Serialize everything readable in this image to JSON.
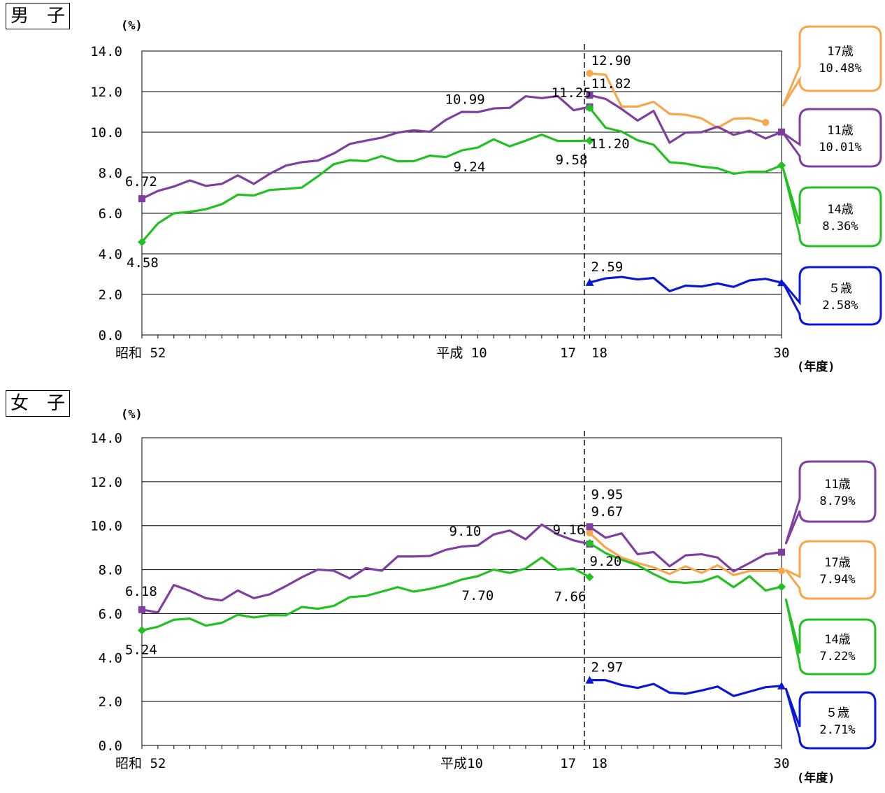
{
  "colors": {
    "age17": "#F7A64C",
    "age11": "#7F3FA0",
    "age14": "#22C022",
    "age5": "#0A17D6"
  },
  "chart_data": [
    {
      "type": "line",
      "panel_label": "男　子",
      "unit_label": "(%)",
      "xlabel": "(年度)",
      "ylim": [
        0,
        14
      ],
      "yticks": [
        "0.0",
        "2.0",
        "4.0",
        "6.0",
        "8.0",
        "10.0",
        "12.0",
        "14.0"
      ],
      "x_tick_labels": [
        {
          "text": "昭和 52",
          "at": 0
        },
        {
          "text": "平成 10",
          "at": 20
        },
        {
          "text": "17",
          "at": 27
        },
        {
          "text": "18",
          "at": 28
        },
        {
          "text": "30",
          "at": 40
        }
      ],
      "gridlines": true,
      "break_between": [
        27,
        28
      ],
      "series": [
        {
          "name": "17歳",
          "color_key": "age17",
          "marker": "circle",
          "segments": [
            {
              "x_start": 28,
              "values": [
                12.9,
                12.83,
                11.26,
                11.26,
                11.5,
                10.9,
                10.86,
                10.68,
                10.21,
                10.66,
                10.69,
                10.48
              ]
            }
          ]
        },
        {
          "name": "11歳",
          "color_key": "age11",
          "marker": "square",
          "segments": [
            {
              "x_start": 0,
              "values": [
                6.72,
                7.1,
                7.32,
                7.62,
                7.35,
                7.45,
                7.87,
                7.45,
                7.95,
                8.35,
                8.52,
                8.6,
                8.95,
                9.42,
                9.58,
                9.73,
                9.98,
                10.09,
                10.02,
                10.6,
                11.0,
                10.99,
                11.17,
                11.2,
                11.77,
                11.68,
                11.78,
                11.08,
                11.25
              ]
            },
            {
              "x_start": 28,
              "values": [
                11.82,
                11.64,
                11.14,
                10.57,
                11.05,
                9.48,
                9.98,
                10.0,
                10.27,
                9.87,
                10.07,
                9.69,
                10.01
              ]
            }
          ]
        },
        {
          "name": "14歳",
          "color_key": "age14",
          "marker": "diamond",
          "segments": [
            {
              "x_start": 0,
              "values": [
                4.58,
                5.5,
                6.0,
                6.07,
                6.2,
                6.45,
                6.92,
                6.88,
                7.15,
                7.2,
                7.27,
                7.82,
                8.42,
                8.62,
                8.57,
                8.82,
                8.56,
                8.57,
                8.84,
                8.77,
                9.1,
                9.24,
                9.65,
                9.3,
                9.58,
                9.88,
                9.57,
                9.57,
                9.58
              ]
            },
            {
              "x_start": 28,
              "values": [
                11.2,
                10.22,
                10.03,
                9.6,
                9.38,
                8.52,
                8.45,
                8.3,
                8.22,
                7.95,
                8.05,
                8.05,
                8.36
              ]
            }
          ]
        },
        {
          "name": "5歳",
          "color_key": "age5",
          "marker": "triangle",
          "segments": [
            {
              "x_start": 28,
              "values": [
                2.59,
                2.79,
                2.86,
                2.74,
                2.81,
                2.16,
                2.43,
                2.39,
                2.54,
                2.37,
                2.69,
                2.77,
                2.58
              ]
            }
          ]
        }
      ],
      "point_labels": [
        {
          "text": "6.72",
          "series": "11歳",
          "x": 0,
          "y": 6.72
        },
        {
          "text": "4.58",
          "series": "14歳",
          "x": 0,
          "y": 4.58
        },
        {
          "text": "10.99",
          "series": "11歳",
          "x": 20,
          "y": 10.99
        },
        {
          "text": "9.24",
          "series": "14歳",
          "x": 20,
          "y": 9.24
        },
        {
          "text": "11.25",
          "series": "11歳",
          "x": 27,
          "y": 11.25
        },
        {
          "text": "9.58",
          "series": "14歳",
          "x": 27,
          "y": 9.58
        },
        {
          "text": "12.90",
          "series": "17歳",
          "x": 28,
          "y": 12.9
        },
        {
          "text": "11.82",
          "series": "11歳",
          "x": 28,
          "y": 11.82
        },
        {
          "text": "11.20",
          "series": "14歳",
          "x": 28,
          "y": 11.2
        },
        {
          "text": "2.59",
          "series": "5歳",
          "x": 28,
          "y": 2.59
        }
      ],
      "callouts": [
        {
          "age": "17歳",
          "value": "10.48%",
          "color_key": "age17"
        },
        {
          "age": "11歳",
          "value": "10.01%",
          "color_key": "age11"
        },
        {
          "age": "14歳",
          "value": "8.36%",
          "color_key": "age14"
        },
        {
          "age": "５歳",
          "value": "2.58%",
          "color_key": "age5"
        }
      ]
    },
    {
      "type": "line",
      "panel_label": "女　子",
      "unit_label": "(%)",
      "xlabel": "(年度)",
      "ylim": [
        0,
        14
      ],
      "yticks": [
        "0.0",
        "2.0",
        "4.0",
        "6.0",
        "8.0",
        "10.0",
        "12.0",
        "14.0"
      ],
      "x_tick_labels": [
        {
          "text": "昭和 52",
          "at": 0
        },
        {
          "text": "平成10",
          "at": 20
        },
        {
          "text": "17",
          "at": 27
        },
        {
          "text": "18",
          "at": 28
        },
        {
          "text": "30",
          "at": 40
        }
      ],
      "gridlines": true,
      "break_between": [
        27,
        28
      ],
      "series": [
        {
          "name": "17歳",
          "color_key": "age17",
          "marker": "circle",
          "segments": [
            {
              "x_start": 28,
              "values": [
                9.67,
                9.0,
                8.55,
                8.3,
                8.1,
                7.8,
                8.15,
                7.85,
                8.2,
                7.75,
                7.94,
                7.94,
                7.94
              ]
            }
          ]
        },
        {
          "name": "11歳",
          "color_key": "age11",
          "marker": "square",
          "segments": [
            {
              "x_start": 0,
              "values": [
                6.18,
                6.05,
                7.3,
                7.03,
                6.7,
                6.6,
                7.05,
                6.7,
                6.88,
                7.25,
                7.65,
                8.0,
                7.95,
                7.6,
                8.07,
                7.95,
                8.6,
                8.6,
                8.62,
                8.9,
                9.05,
                9.1,
                9.6,
                9.78,
                9.38,
                10.05,
                9.6,
                9.33,
                9.16
              ]
            },
            {
              "x_start": 28,
              "values": [
                9.95,
                9.45,
                9.65,
                8.7,
                8.8,
                8.15,
                8.65,
                8.7,
                8.55,
                7.92,
                8.3,
                8.7,
                8.79
              ]
            }
          ]
        },
        {
          "name": "14歳",
          "color_key": "age14",
          "marker": "diamond",
          "segments": [
            {
              "x_start": 0,
              "values": [
                5.24,
                5.4,
                5.72,
                5.77,
                5.45,
                5.58,
                5.95,
                5.82,
                5.93,
                5.92,
                6.3,
                6.22,
                6.35,
                6.75,
                6.8,
                7.0,
                7.2,
                7.0,
                7.12,
                7.3,
                7.55,
                7.7,
                8.0,
                7.85,
                8.05,
                8.55,
                8.0,
                8.05,
                7.66
              ]
            },
            {
              "x_start": 28,
              "values": [
                9.2,
                8.75,
                8.45,
                8.2,
                7.8,
                7.45,
                7.4,
                7.45,
                7.7,
                7.2,
                7.7,
                7.05,
                7.22
              ]
            }
          ]
        },
        {
          "name": "5歳",
          "color_key": "age5",
          "marker": "triangle",
          "segments": [
            {
              "x_start": 28,
              "values": [
                2.97,
                2.97,
                2.75,
                2.62,
                2.8,
                2.4,
                2.35,
                2.5,
                2.68,
                2.25,
                2.45,
                2.65,
                2.71
              ]
            }
          ]
        }
      ],
      "point_labels": [
        {
          "text": "6.18",
          "series": "11歳",
          "x": 0,
          "y": 6.18
        },
        {
          "text": "5.24",
          "series": "14歳",
          "x": 0,
          "y": 5.24
        },
        {
          "text": "9.10",
          "series": "11歳",
          "x": 20,
          "y": 9.1
        },
        {
          "text": "7.70",
          "series": "14歳",
          "x": 20,
          "y": 7.7
        },
        {
          "text": "9.16",
          "series": "11歳",
          "x": 27,
          "y": 9.16
        },
        {
          "text": "7.66",
          "series": "14歳",
          "x": 27,
          "y": 7.66
        },
        {
          "text": "9.95",
          "series": "11歳",
          "x": 28,
          "y": 9.95
        },
        {
          "text": "9.67",
          "series": "17歳",
          "x": 28,
          "y": 9.67
        },
        {
          "text": "9.20",
          "series": "14歳",
          "x": 28,
          "y": 9.2
        },
        {
          "text": "2.97",
          "series": "5歳",
          "x": 28,
          "y": 2.97
        }
      ],
      "callouts": [
        {
          "age": "11歳",
          "value": "8.79%",
          "color_key": "age11"
        },
        {
          "age": "17歳",
          "value": "7.94%",
          "color_key": "age17"
        },
        {
          "age": "14歳",
          "value": "7.22%",
          "color_key": "age14"
        },
        {
          "age": "５歳",
          "value": "2.71%",
          "color_key": "age5"
        }
      ]
    }
  ]
}
